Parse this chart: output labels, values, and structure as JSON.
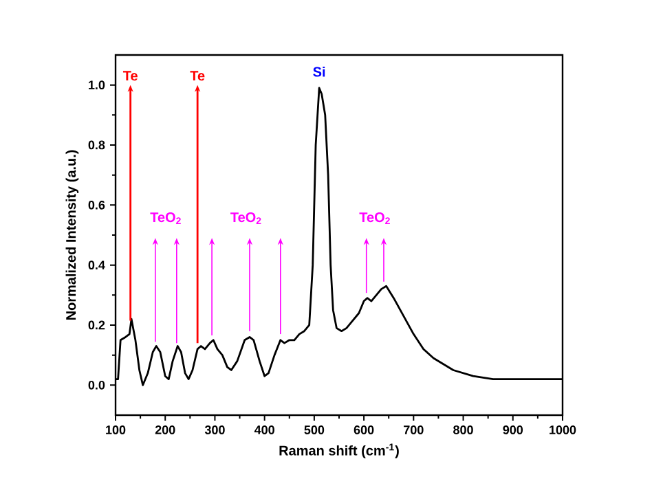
{
  "chart_data": {
    "type": "line",
    "xlabel": "Raman shift (cm$^{-1}$)",
    "ylabel": "Normalized Intensity (a.u.)",
    "xlim": [
      100,
      1000
    ],
    "ylim": [
      -0.1,
      1.1
    ],
    "xticks": [
      100,
      200,
      300,
      400,
      500,
      600,
      700,
      800,
      900,
      1000
    ],
    "yticks": [
      {
        "value": 0,
        "label": "0.0"
      },
      0.2,
      0.4,
      0.6,
      0.8,
      {
        "value": 1,
        "label": "1.0"
      }
    ],
    "grid": false,
    "marker": "none",
    "line_style": "solid",
    "series": [
      {
        "color": "#000000",
        "x": [
          100,
          105,
          110,
          120,
          128,
          132,
          140,
          148,
          155,
          165,
          175,
          182,
          190,
          200,
          207,
          215,
          225,
          232,
          240,
          247,
          255,
          265,
          272,
          280,
          290,
          297,
          305,
          315,
          325,
          333,
          345,
          360,
          370,
          378,
          390,
          400,
          408,
          420,
          432,
          440,
          450,
          460,
          470,
          480,
          490,
          497,
          503,
          510,
          515,
          522,
          528,
          533,
          538,
          545,
          555,
          565,
          575,
          590,
          600,
          607,
          615,
          625,
          635,
          645,
          660,
          680,
          700,
          720,
          740,
          760,
          780,
          800,
          820,
          840,
          860,
          900,
          1000
        ],
        "values": [
          0.02,
          0.02,
          0.15,
          0.16,
          0.17,
          0.22,
          0.15,
          0.05,
          0.0,
          0.04,
          0.11,
          0.13,
          0.11,
          0.03,
          0.02,
          0.08,
          0.13,
          0.11,
          0.04,
          0.02,
          0.05,
          0.12,
          0.13,
          0.12,
          0.14,
          0.15,
          0.12,
          0.1,
          0.06,
          0.05,
          0.08,
          0.15,
          0.16,
          0.15,
          0.08,
          0.03,
          0.04,
          0.1,
          0.15,
          0.14,
          0.15,
          0.15,
          0.17,
          0.18,
          0.2,
          0.4,
          0.8,
          0.99,
          0.97,
          0.9,
          0.7,
          0.4,
          0.25,
          0.19,
          0.18,
          0.19,
          0.21,
          0.24,
          0.28,
          0.29,
          0.28,
          0.3,
          0.32,
          0.33,
          0.29,
          0.23,
          0.17,
          0.12,
          0.09,
          0.07,
          0.05,
          0.04,
          0.03,
          0.025,
          0.02,
          0.02,
          0.02
        ]
      }
    ],
    "ref_lines": [
      {
        "axis": "x",
        "value": 130,
        "label": "Te",
        "color": "#ff0000"
      },
      {
        "axis": "x",
        "value": 180,
        "label": "TeO$_{2}$",
        "color": "#ff00ff"
      },
      {
        "axis": "x",
        "value": 223,
        "color": "#ff00ff"
      },
      {
        "axis": "x",
        "value": 265,
        "label": "Te",
        "color": "#ff0000"
      },
      {
        "axis": "x",
        "value": 294,
        "label": "TeO$_{2}$",
        "color": "#ff00ff"
      },
      {
        "axis": "x",
        "value": 370,
        "color": "#ff00ff"
      },
      {
        "axis": "x",
        "value": 432,
        "color": "#ff00ff"
      },
      {
        "axis": "x",
        "value": 605,
        "label": "TeO$_{2}$",
        "color": "#ff00ff"
      },
      {
        "axis": "x",
        "value": 640,
        "color": "#ff00ff"
      }
    ],
    "annotations": [
      "Si"
    ]
  }
}
